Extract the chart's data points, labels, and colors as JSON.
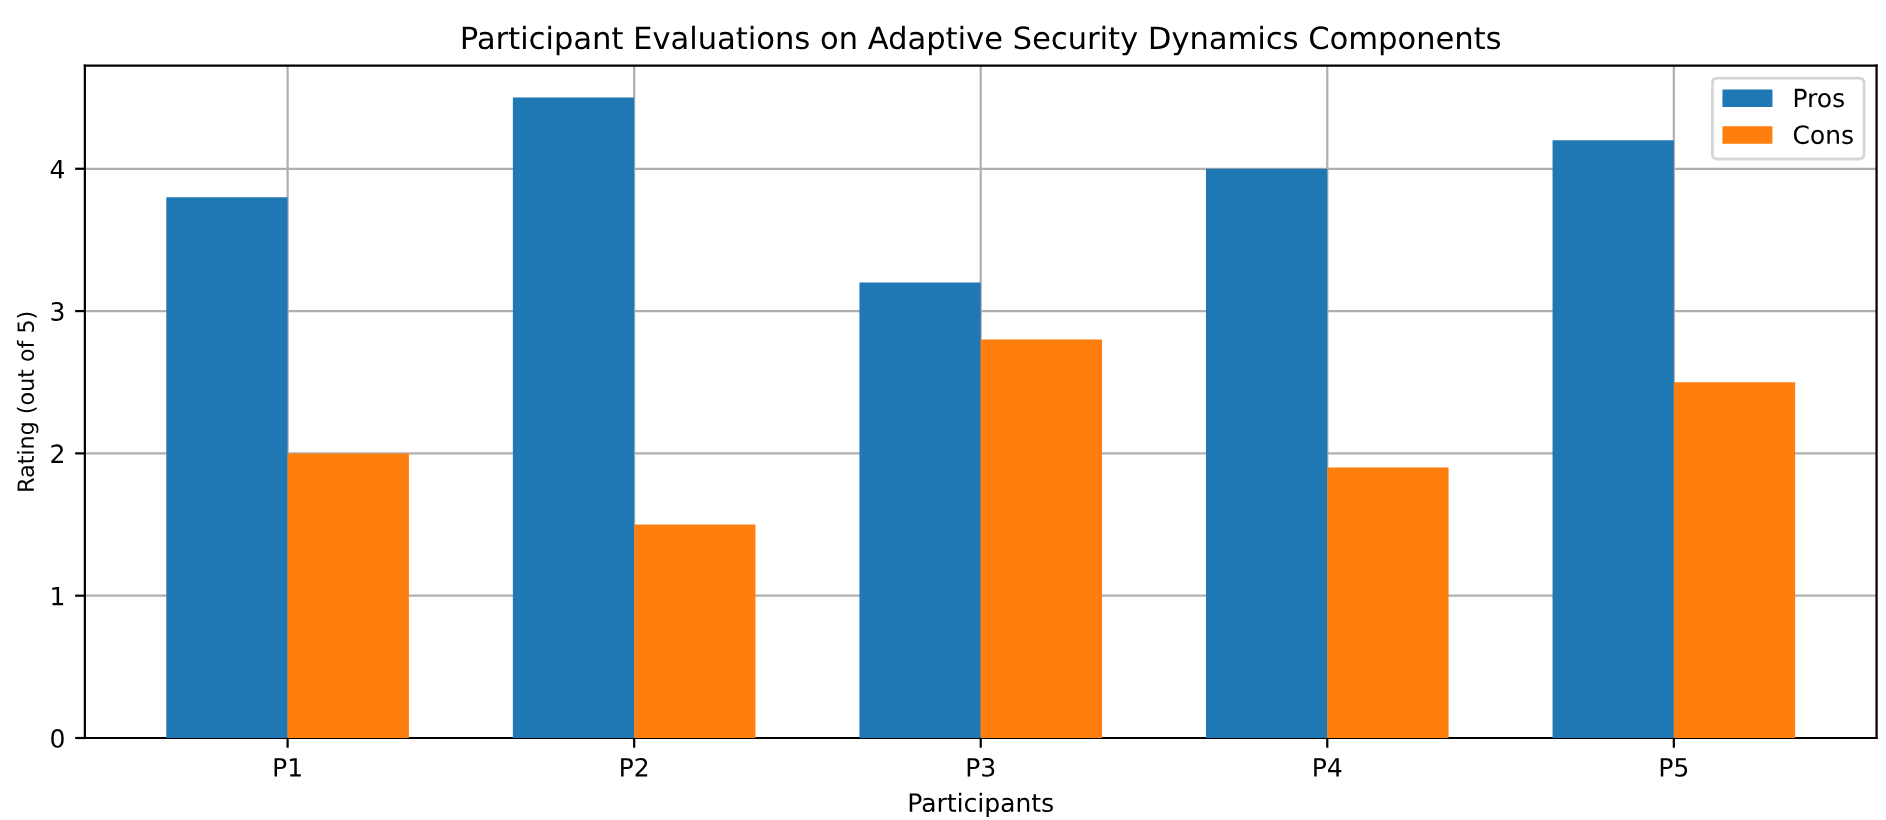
{
  "chart_data": {
    "type": "bar",
    "title": "Participant Evaluations on Adaptive Security Dynamics Components",
    "xlabel": "Participants",
    "ylabel": "Rating (out of 5)",
    "categories": [
      "P1",
      "P2",
      "P3",
      "P4",
      "P5"
    ],
    "series": [
      {
        "name": "Pros",
        "color": "#1f77b4",
        "values": [
          3.8,
          4.5,
          3.2,
          4.0,
          4.2
        ]
      },
      {
        "name": "Cons",
        "color": "#ff7f0e",
        "values": [
          2.0,
          1.5,
          2.8,
          1.9,
          2.5
        ]
      }
    ],
    "ylim": [
      0,
      4.725
    ],
    "yticks": [
      0,
      1,
      2,
      3,
      4
    ],
    "grid": true,
    "legend": "top right"
  }
}
